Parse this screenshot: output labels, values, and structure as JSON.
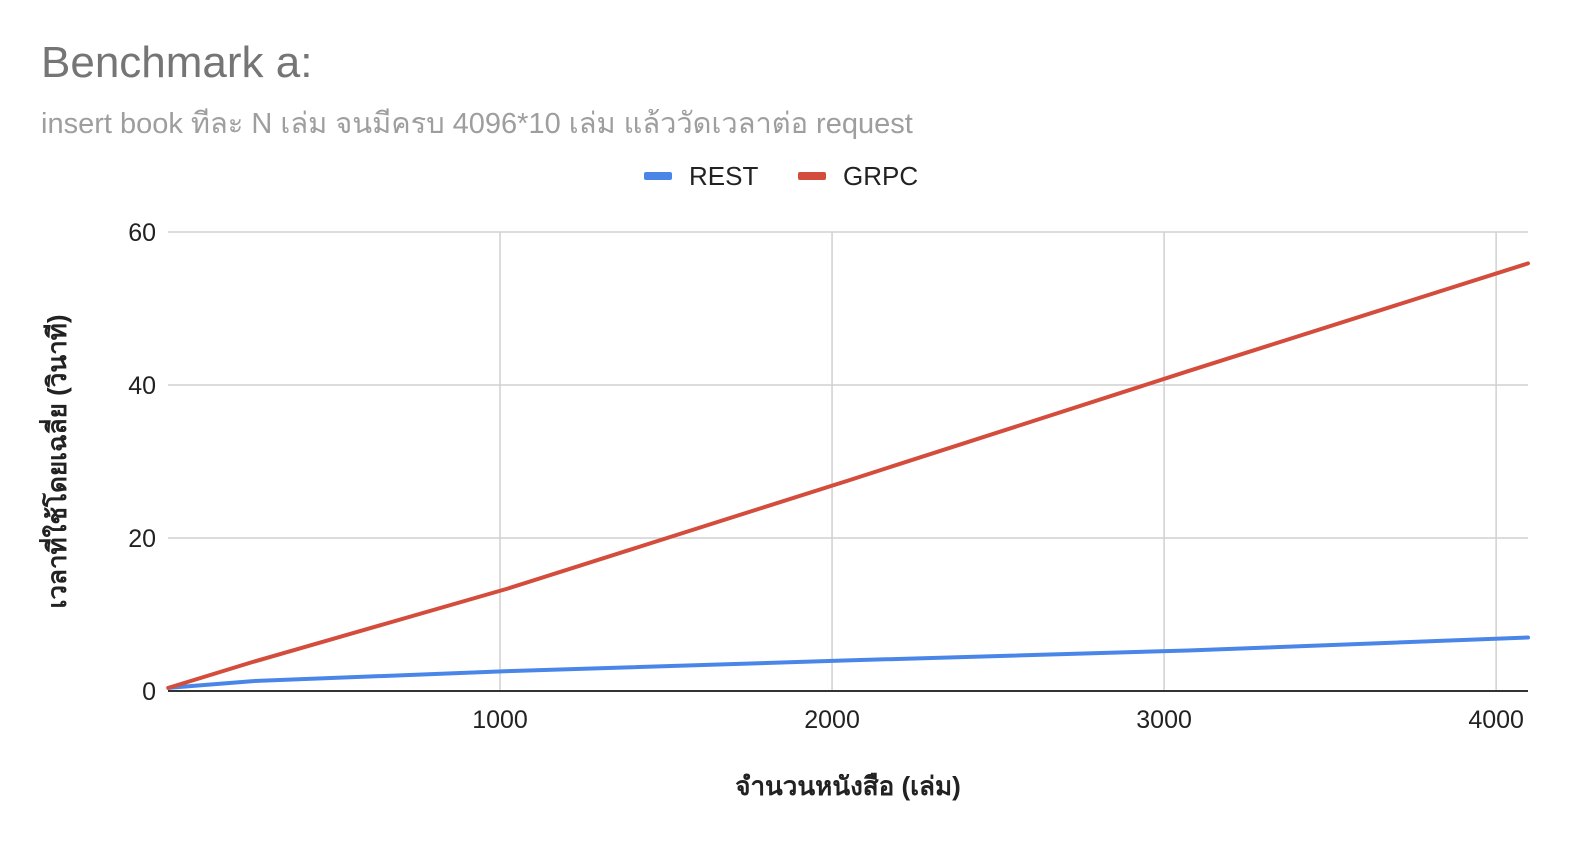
{
  "chart_data": {
    "type": "line",
    "title": "Benchmark a:",
    "subtitle": "insert book ทีละ N เล่ม จนมีครบ 4096*10 เล่ม แล้ววัดเวลาต่อ request",
    "xlabel": "จำนวนหนังสือ (เล่ม)",
    "ylabel": "เวลาที่ใช้โดยเฉลี่ย (วินาที)",
    "xlim": [
      0,
      4096
    ],
    "ylim": [
      0,
      60
    ],
    "x_ticks": [
      1000,
      2000,
      3000,
      4000
    ],
    "y_ticks": [
      0,
      20,
      40,
      60
    ],
    "x_tick_labels": [
      "1000",
      "2000",
      "3000",
      "4000"
    ],
    "y_tick_labels": [
      "0",
      "20",
      "40",
      "60"
    ],
    "grid": true,
    "legend_position": "top-center",
    "series": [
      {
        "name": "REST",
        "color": "#4a86e8",
        "points": [
          [
            1,
            0.4
          ],
          [
            256,
            1.3
          ],
          [
            1024,
            2.6
          ],
          [
            2048,
            4.0
          ],
          [
            3072,
            5.3
          ],
          [
            4096,
            7.0
          ]
        ]
      },
      {
        "name": "GRPC",
        "color": "#d44c3c",
        "points": [
          [
            1,
            0.4
          ],
          [
            256,
            3.8
          ],
          [
            1024,
            13.4
          ],
          [
            2048,
            27.5
          ],
          [
            3072,
            41.8
          ],
          [
            4096,
            55.9
          ]
        ]
      }
    ]
  }
}
